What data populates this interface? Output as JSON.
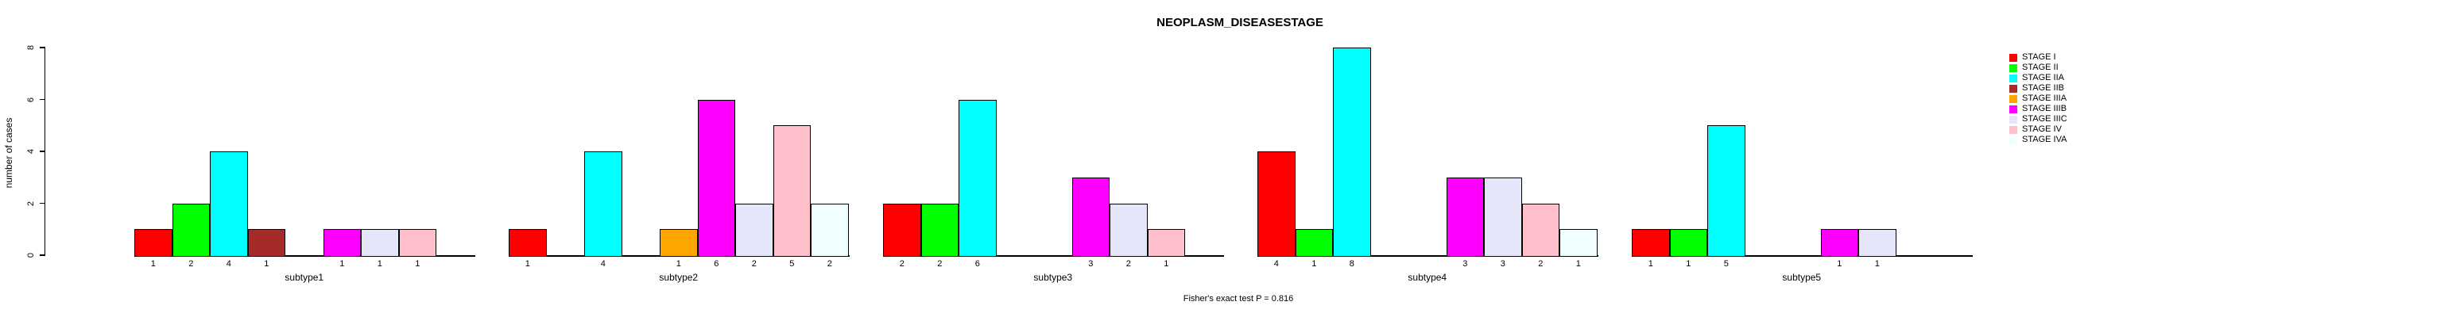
{
  "chart_data": {
    "type": "bar",
    "title": "NEOPLASM_DISEASESTAGE",
    "ylabel": "number of cases",
    "xlabel": "",
    "ylim": [
      0,
      8
    ],
    "yticks": [
      0,
      2,
      4,
      6,
      8
    ],
    "grid": false,
    "legend_position": "top-right",
    "caption": "Fisher's exact test P = 0.816",
    "bar_label_rule": "count printed under each drawn bar; stages with zero cases in a group have no bar and no label",
    "categories": [
      "subtype1",
      "subtype2",
      "subtype3",
      "subtype4",
      "subtype5"
    ],
    "series": [
      {
        "name": "STAGE I",
        "color": "#FF0000",
        "values": [
          1,
          1,
          2,
          4,
          1
        ]
      },
      {
        "name": "STAGE II",
        "color": "#00FF00",
        "values": [
          2,
          0,
          2,
          1,
          1
        ]
      },
      {
        "name": "STAGE IIA",
        "color": "#00FFFF",
        "values": [
          4,
          4,
          6,
          8,
          5
        ]
      },
      {
        "name": "STAGE IIB",
        "color": "#A52A2A",
        "values": [
          1,
          0,
          0,
          0,
          0
        ]
      },
      {
        "name": "STAGE IIIA",
        "color": "#FFA500",
        "values": [
          0,
          1,
          0,
          0,
          0
        ]
      },
      {
        "name": "STAGE IIIB",
        "color": "#FF00FF",
        "values": [
          1,
          6,
          3,
          3,
          1
        ]
      },
      {
        "name": "STAGE IIIC",
        "color": "#E6E6FA",
        "values": [
          1,
          2,
          2,
          3,
          1
        ]
      },
      {
        "name": "STAGE IV",
        "color": "#FFC0CB",
        "values": [
          1,
          5,
          1,
          2,
          0
        ]
      },
      {
        "name": "STAGE IVA",
        "color": "#F0FFFF",
        "values": [
          0,
          2,
          0,
          1,
          0
        ]
      }
    ]
  }
}
